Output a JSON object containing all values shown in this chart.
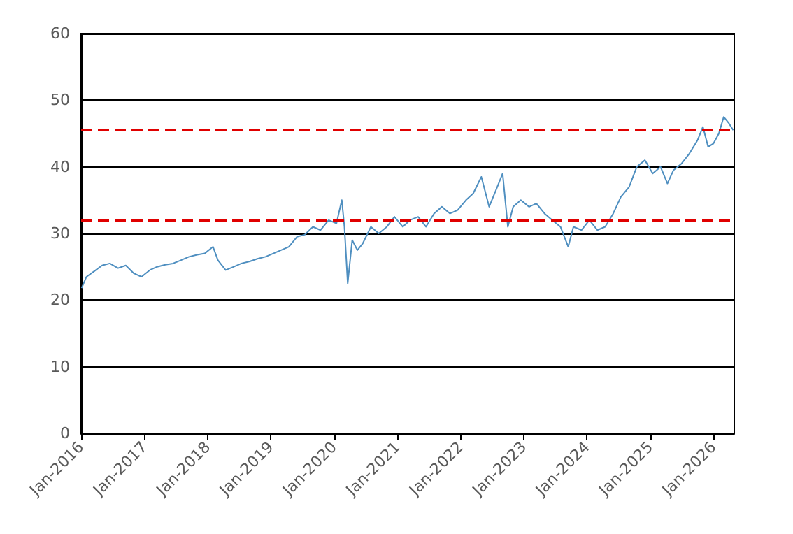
{
  "chart_data": {
    "type": "line",
    "x": [
      "2016-01-04",
      "2016-02-01",
      "2016-03-15",
      "2016-05-01",
      "2016-06-15",
      "2016-08-01",
      "2016-09-15",
      "2016-11-01",
      "2016-12-15",
      "2017-02-01",
      "2017-03-15",
      "2017-05-01",
      "2017-06-15",
      "2017-08-01",
      "2017-09-15",
      "2017-11-01",
      "2017-12-15",
      "2018-02-01",
      "2018-03-01",
      "2018-04-15",
      "2018-06-01",
      "2018-07-15",
      "2018-09-01",
      "2018-10-15",
      "2018-12-01",
      "2019-01-15",
      "2019-03-01",
      "2019-04-15",
      "2019-06-01",
      "2019-07-15",
      "2019-09-01",
      "2019-10-15",
      "2019-12-01",
      "2020-01-15",
      "2020-02-15",
      "2020-03-01",
      "2020-03-20",
      "2020-04-15",
      "2020-05-15",
      "2020-06-15",
      "2020-08-01",
      "2020-09-15",
      "2020-11-01",
      "2020-12-15",
      "2021-02-01",
      "2021-03-15",
      "2021-05-01",
      "2021-06-15",
      "2021-08-01",
      "2021-09-15",
      "2021-11-01",
      "2021-12-15",
      "2022-02-01",
      "2022-03-15",
      "2022-05-01",
      "2022-06-15",
      "2022-08-01",
      "2022-09-01",
      "2022-10-01",
      "2022-11-01",
      "2022-12-15",
      "2023-02-01",
      "2023-03-15",
      "2023-05-01",
      "2023-06-15",
      "2023-08-01",
      "2023-09-15",
      "2023-10-15",
      "2023-12-01",
      "2024-01-15",
      "2024-03-01",
      "2024-04-15",
      "2024-06-01",
      "2024-07-15",
      "2024-09-01",
      "2024-10-15",
      "2024-12-01",
      "2025-01-15",
      "2025-03-01",
      "2025-04-10",
      "2025-05-15",
      "2025-07-01",
      "2025-08-15",
      "2025-10-01",
      "2025-11-01",
      "2025-12-01",
      "2026-01-01",
      "2026-02-01",
      "2026-03-01",
      "2026-04-01",
      "2026-04-25"
    ],
    "series": [
      {
        "color": "#4f8fc0",
        "values": [
          21.8,
          23.5,
          24.3,
          25.2,
          25.5,
          24.8,
          25.2,
          24,
          23.5,
          24.5,
          25,
          25.3,
          25.5,
          26,
          26.5,
          26.8,
          27,
          28,
          26,
          24.5,
          25,
          25.5,
          25.8,
          26.2,
          26.5,
          27,
          27.5,
          28,
          29.5,
          29.8,
          31,
          30.5,
          32,
          31.5,
          35,
          31,
          22.5,
          29,
          27.5,
          28.5,
          31,
          30,
          31,
          32.5,
          31,
          32,
          32.5,
          31,
          33,
          34,
          33,
          33.5,
          35,
          36,
          38.5,
          34,
          37,
          39,
          31,
          34,
          35,
          34,
          34.5,
          33,
          32,
          31,
          28,
          31,
          30.5,
          32,
          30.5,
          31,
          33,
          35.5,
          37,
          40,
          41,
          39,
          40,
          37.5,
          39.5,
          40.5,
          42,
          44,
          46,
          43,
          43.5,
          45,
          47.5,
          46.5,
          45.5
        ]
      }
    ],
    "xlim": [
      "2016-01-01",
      "2026-05-01"
    ],
    "xticks": [
      {
        "value": "2016-01-01",
        "label": "Jan-2016"
      },
      {
        "value": "2017-01-01",
        "label": "Jan-2017"
      },
      {
        "value": "2018-01-01",
        "label": "Jan-2018"
      },
      {
        "value": "2019-01-01",
        "label": "Jan-2019"
      },
      {
        "value": "2020-01-01",
        "label": "Jan-2020"
      },
      {
        "value": "2021-01-01",
        "label": "Jan-2021"
      },
      {
        "value": "2022-01-01",
        "label": "Jan-2022"
      },
      {
        "value": "2023-01-01",
        "label": "Jan-2023"
      },
      {
        "value": "2024-01-01",
        "label": "Jan-2024"
      },
      {
        "value": "2025-01-01",
        "label": "Jan-2025"
      },
      {
        "value": "2026-01-01",
        "label": "Jan-2026"
      }
    ],
    "ylim": [
      0,
      60
    ],
    "yticks": [
      0,
      10,
      20,
      30,
      40,
      50,
      60
    ],
    "grid": "y",
    "marker": "none",
    "line_style": "solid",
    "ref_lines": [
      {
        "axis": "y",
        "value": 45.5,
        "color": "#e00000",
        "line_style": "dashed"
      },
      {
        "axis": "y",
        "value": 32,
        "color": "#e00000",
        "line_style": "dashed"
      }
    ]
  }
}
